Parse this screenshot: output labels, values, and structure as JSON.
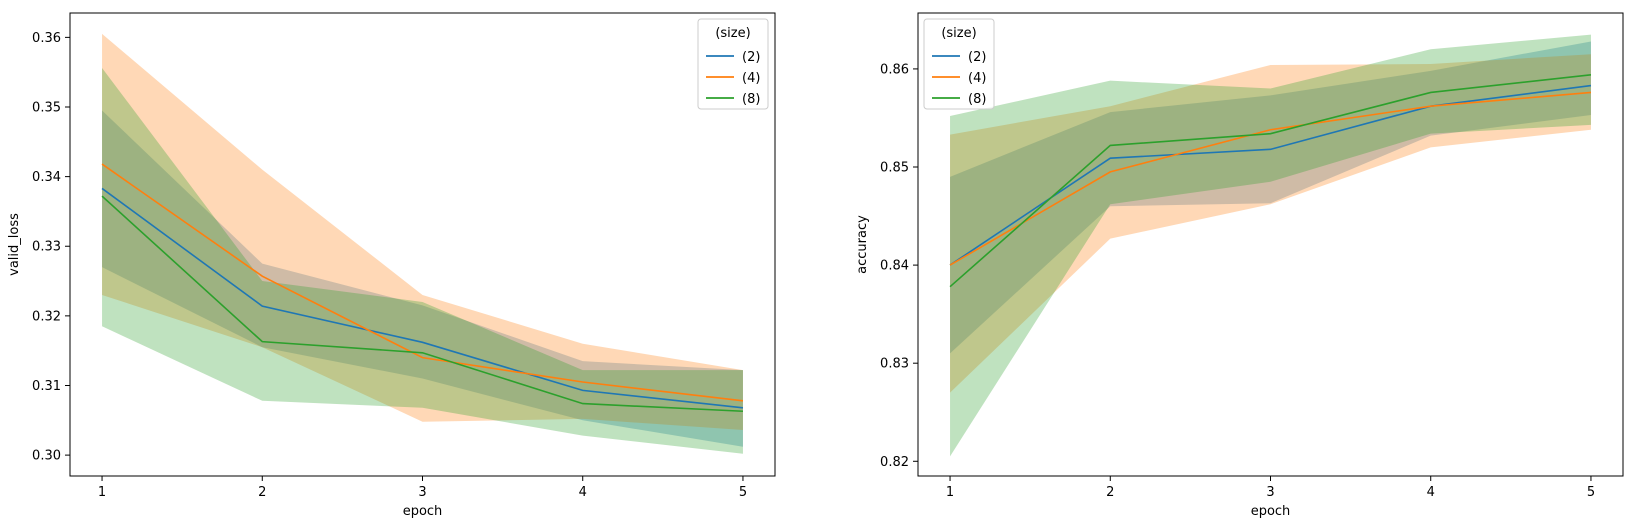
{
  "chart_data": [
    {
      "type": "line",
      "xlabel": "epoch",
      "ylabel": "valid_loss",
      "x": [
        1,
        2,
        3,
        4,
        5
      ],
      "xticks": [
        "1",
        "2",
        "3",
        "4",
        "5"
      ],
      "yticks": [
        "0.30",
        "0.31",
        "0.32",
        "0.33",
        "0.34",
        "0.35",
        "0.36"
      ],
      "xlim": [
        0.8,
        5.2
      ],
      "ylim": [
        0.297,
        0.3635
      ],
      "grid": false,
      "legend": {
        "title": "(size)",
        "placement": "top-right"
      },
      "series": [
        {
          "name": "(2)",
          "color": "#1f77b4",
          "values": [
            0.3383,
            0.3214,
            0.3162,
            0.3093,
            0.3068
          ],
          "lower": [
            0.327,
            0.3155,
            0.311,
            0.305,
            0.3012
          ],
          "upper": [
            0.3495,
            0.3275,
            0.3215,
            0.3135,
            0.3122
          ]
        },
        {
          "name": "(4)",
          "color": "#ff7f0e",
          "values": [
            0.3418,
            0.3257,
            0.314,
            0.3105,
            0.3078
          ],
          "lower": [
            0.323,
            0.3155,
            0.3048,
            0.3052,
            0.3036
          ],
          "upper": [
            0.3605,
            0.341,
            0.323,
            0.316,
            0.3122
          ]
        },
        {
          "name": "(8)",
          "color": "#2ca02c",
          "values": [
            0.3372,
            0.3163,
            0.3147,
            0.3074,
            0.3063
          ],
          "lower": [
            0.3185,
            0.3078,
            0.3068,
            0.3028,
            0.3002
          ],
          "upper": [
            0.3556,
            0.325,
            0.322,
            0.3122,
            0.3122
          ]
        }
      ]
    },
    {
      "type": "line",
      "xlabel": "epoch",
      "ylabel": "accuracy",
      "x": [
        1,
        2,
        3,
        4,
        5
      ],
      "xticks": [
        "1",
        "2",
        "3",
        "4",
        "5"
      ],
      "yticks": [
        "0.82",
        "0.83",
        "0.84",
        "0.85",
        "0.86"
      ],
      "xlim": [
        0.8,
        5.2
      ],
      "ylim": [
        0.8185,
        0.8657
      ],
      "grid": false,
      "legend": {
        "title": "(size)",
        "placement": "top-left"
      },
      "series": [
        {
          "name": "(2)",
          "color": "#1f77b4",
          "values": [
            0.84,
            0.8509,
            0.8518,
            0.8562,
            0.8583
          ],
          "lower": [
            0.831,
            0.846,
            0.8463,
            0.8532,
            0.8553
          ],
          "upper": [
            0.849,
            0.8556,
            0.8573,
            0.8598,
            0.8628
          ]
        },
        {
          "name": "(4)",
          "color": "#ff7f0e",
          "values": [
            0.84,
            0.8495,
            0.8538,
            0.8562,
            0.8576
          ],
          "lower": [
            0.827,
            0.8427,
            0.8462,
            0.852,
            0.8538
          ],
          "upper": [
            0.8533,
            0.8562,
            0.8604,
            0.8605,
            0.8615
          ]
        },
        {
          "name": "(8)",
          "color": "#2ca02c",
          "values": [
            0.8378,
            0.8522,
            0.8534,
            0.8576,
            0.8594
          ],
          "lower": [
            0.8205,
            0.8462,
            0.8485,
            0.8534,
            0.8543
          ],
          "upper": [
            0.8552,
            0.8588,
            0.858,
            0.862,
            0.8635
          ]
        }
      ]
    }
  ]
}
